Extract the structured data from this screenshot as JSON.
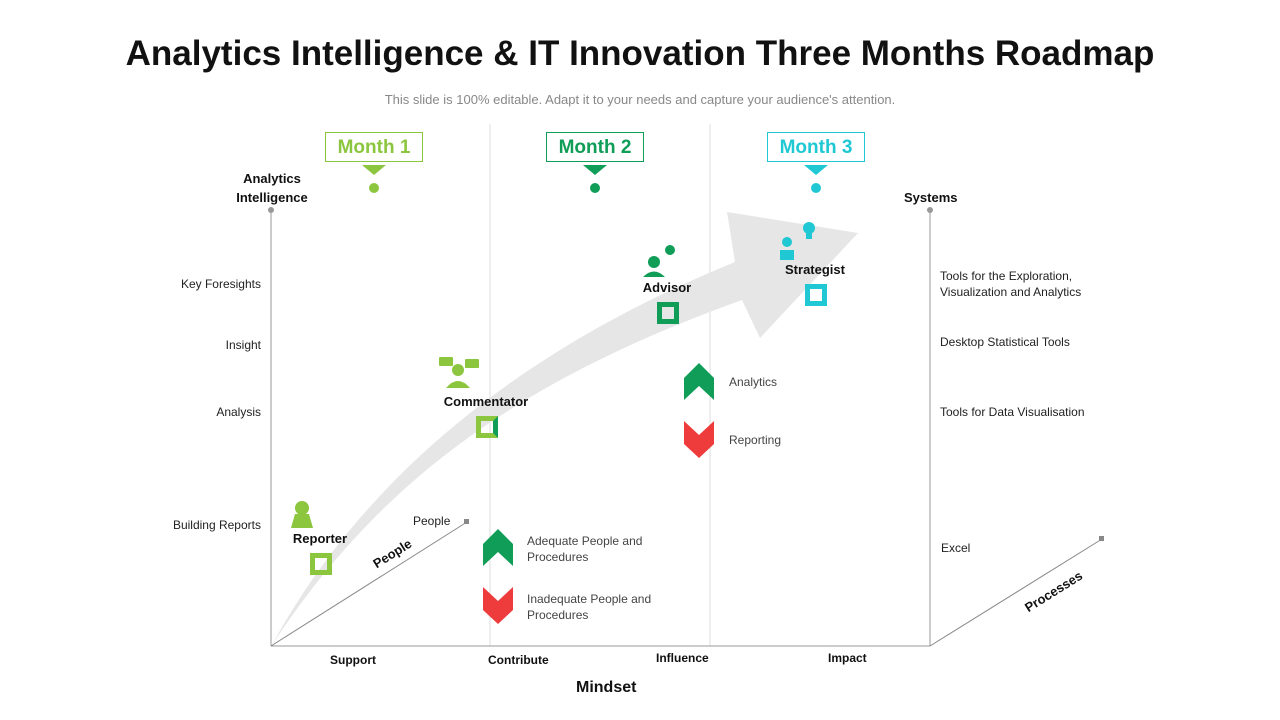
{
  "title": "Analytics Intelligence & IT Innovation Three Months Roadmap",
  "subtitle": "This slide is 100% editable. Adapt it to your needs and capture your audience's attention.",
  "months": [
    {
      "label": "Month 1",
      "color": "#8cc63f"
    },
    {
      "label": "Month 2",
      "color": "#0f9d58"
    },
    {
      "label": "Month 3",
      "color": "#1fc8d3"
    }
  ],
  "y_axis": {
    "title": "Analytics Intelligence",
    "levels": [
      "Key Foresights",
      "Insight",
      "Analysis",
      "Building Reports"
    ]
  },
  "x_axis": {
    "title": "Mindset",
    "ticks": [
      "Support",
      "Contribute",
      "Influence",
      "Impact"
    ]
  },
  "people_axis": {
    "label": "People",
    "end_label": "People"
  },
  "systems_axis": {
    "title": "Systems",
    "items": [
      "Tools for the Exploration, Visualization and Analytics",
      "Desktop Statistical Tools",
      "Tools for Data Visualisation",
      "Excel"
    ]
  },
  "processes_axis": {
    "label": "Processes"
  },
  "roles": [
    {
      "label": "Reporter",
      "icon": "reporter-icon",
      "color": "#8cc63f"
    },
    {
      "label": "Commentator",
      "icon": "chat-person-icon",
      "color": "#8cc63f"
    },
    {
      "label": "Advisor",
      "icon": "advisor-icon",
      "color": "#0f9d58"
    },
    {
      "label": "Strategist",
      "icon": "lightbulb-person-icon",
      "color": "#1fc8d3"
    }
  ],
  "legend": {
    "up_label_1": "Adequate People and Procedures",
    "down_label_1": "Inadequate People and Procedures",
    "up_label_2": "Analytics",
    "down_label_2": "Reporting",
    "up_color": "#0f9d58",
    "down_color": "#ee3b3b"
  }
}
